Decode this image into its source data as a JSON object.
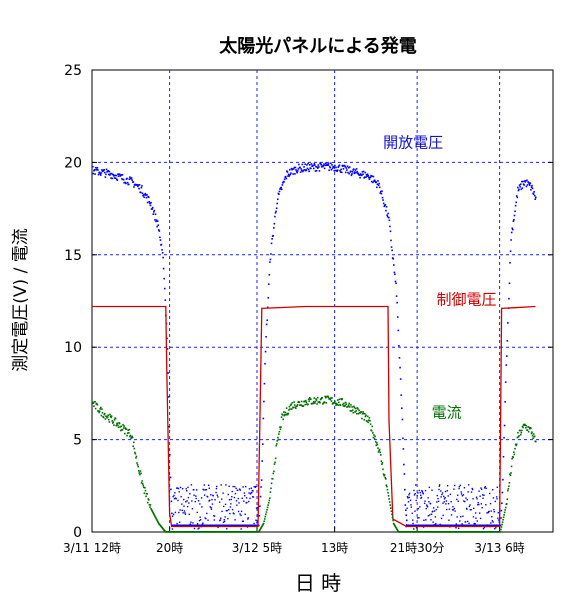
{
  "chart_data": {
    "type": "line",
    "title": "太陽光パネルによる発電",
    "xlabel": "日 時",
    "ylabel": "測定電圧(V) / 電流",
    "ylim": [
      0,
      25
    ],
    "yticks": [
      0,
      5,
      10,
      15,
      20,
      25
    ],
    "xlim_hours": [
      0,
      47.5
    ],
    "xticks": [
      {
        "hour": 0,
        "label": "3/11 12時"
      },
      {
        "hour": 8,
        "label": "20時"
      },
      {
        "hour": 17,
        "label": "3/12  5時"
      },
      {
        "hour": 25,
        "label": "13時"
      },
      {
        "hour": 33.5,
        "label": "21時30分"
      },
      {
        "hour": 42,
        "label": "3/13  6時"
      }
    ],
    "grid": true,
    "series": [
      {
        "name": "開放電圧",
        "color": "#0000ff",
        "style": "dots",
        "points": [
          [
            0,
            19.6
          ],
          [
            1,
            19.5
          ],
          [
            2,
            19.4
          ],
          [
            3,
            19.2
          ],
          [
            4,
            19.0
          ],
          [
            5,
            18.6
          ],
          [
            6,
            17.8
          ],
          [
            6.8,
            16.5
          ],
          [
            7.3,
            14.5
          ],
          [
            7.7,
            10.0
          ],
          [
            8.0,
            3.0
          ],
          [
            8.2,
            0.4
          ],
          [
            17.1,
            0.4
          ],
          [
            17.4,
            3.0
          ],
          [
            17.8,
            10.0
          ],
          [
            18.3,
            15.0
          ],
          [
            19.0,
            18.0
          ],
          [
            20.0,
            19.4
          ],
          [
            21,
            19.7
          ],
          [
            23,
            19.8
          ],
          [
            25,
            19.8
          ],
          [
            27,
            19.5
          ],
          [
            28.5,
            19.3
          ],
          [
            29.5,
            18.8
          ],
          [
            30.5,
            17.0
          ],
          [
            31.3,
            13.0
          ],
          [
            31.9,
            6.0
          ],
          [
            32.2,
            1.5
          ],
          [
            32.4,
            0.4
          ],
          [
            42.0,
            0.4
          ],
          [
            42.2,
            2.0
          ],
          [
            42.6,
            9.0
          ],
          [
            43.1,
            16.0
          ],
          [
            43.8,
            18.5
          ],
          [
            44.5,
            19.0
          ],
          [
            45.2,
            18.7
          ],
          [
            45.7,
            18.0
          ]
        ]
      },
      {
        "name": "制御電圧",
        "color": "#d00000",
        "style": "line",
        "points": [
          [
            0,
            12.2
          ],
          [
            7.6,
            12.2
          ],
          [
            7.7,
            9.0
          ],
          [
            8.0,
            1.0
          ],
          [
            8.2,
            0.3
          ],
          [
            17.1,
            0.3
          ],
          [
            17.3,
            6.0
          ],
          [
            17.5,
            12.1
          ],
          [
            22,
            12.2
          ],
          [
            30.5,
            12.2
          ],
          [
            30.6,
            6.0
          ],
          [
            31.0,
            0.7
          ],
          [
            32.4,
            0.3
          ],
          [
            42.0,
            0.3
          ],
          [
            42.1,
            6.0
          ],
          [
            42.2,
            12.1
          ],
          [
            45.7,
            12.2
          ]
        ]
      },
      {
        "name": "電流",
        "color": "#007000",
        "style": "dots",
        "points": [
          [
            0,
            7.0
          ],
          [
            1,
            6.5
          ],
          [
            2,
            6.1
          ],
          [
            3,
            5.7
          ],
          [
            4,
            5.3
          ],
          [
            4.5,
            4.0
          ],
          [
            5.2,
            2.5
          ],
          [
            6.0,
            1.3
          ],
          [
            6.8,
            0.5
          ],
          [
            7.5,
            0.05
          ],
          [
            17.1,
            0.05
          ],
          [
            17.6,
            0.5
          ],
          [
            18.3,
            2.0
          ],
          [
            18.9,
            4.5
          ],
          [
            19.5,
            6.2
          ],
          [
            20.5,
            6.9
          ],
          [
            22,
            7.1
          ],
          [
            24,
            7.2
          ],
          [
            26,
            7.0
          ],
          [
            27.5,
            6.5
          ],
          [
            28.5,
            6.0
          ],
          [
            29.5,
            4.5
          ],
          [
            30.3,
            2.5
          ],
          [
            31.0,
            0.5
          ],
          [
            31.5,
            0.05
          ],
          [
            42.0,
            0.05
          ],
          [
            42.6,
            1.5
          ],
          [
            43.2,
            3.8
          ],
          [
            43.8,
            5.2
          ],
          [
            44.5,
            5.8
          ],
          [
            45.2,
            5.5
          ],
          [
            45.7,
            4.8
          ]
        ]
      }
    ],
    "night_noise": {
      "color": "#0000ff",
      "intervals": [
        [
          8.2,
          17.0
        ],
        [
          32.3,
          41.9
        ]
      ],
      "ymin": 0.2,
      "ymax": 2.6
    },
    "annotations": [
      {
        "text": "開放電圧",
        "x_hour": 30,
        "y": 20.8,
        "color": "#1010d0"
      },
      {
        "text": "制御電圧",
        "x_hour": 35.5,
        "y": 12.3,
        "color": "#d00000"
      },
      {
        "text": "電流",
        "x_hour": 35.0,
        "y": 6.2,
        "color": "#007000"
      }
    ]
  }
}
